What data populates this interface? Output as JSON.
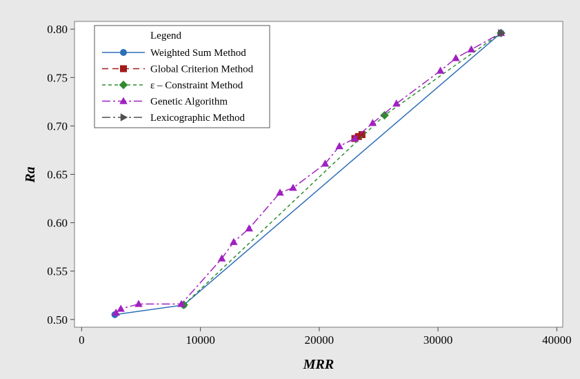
{
  "chart_data": {
    "type": "line",
    "title": "",
    "xlabel": "MRR",
    "ylabel": "Ra",
    "xlim": [
      -600,
      40500
    ],
    "ylim": [
      0.492,
      0.808
    ],
    "x_ticks": [
      0,
      10000,
      20000,
      30000,
      40000
    ],
    "x_tick_labels": [
      "0",
      "10000",
      "20000",
      "30000",
      "40000"
    ],
    "y_ticks": [
      0.5,
      0.55,
      0.6,
      0.65,
      0.7,
      0.75,
      0.8
    ],
    "y_tick_labels": [
      "0.50",
      "0.55",
      "0.60",
      "0.65",
      "0.70",
      "0.75",
      "0.80"
    ],
    "grid": false,
    "legend": {
      "title": "Legend",
      "position": "top-left"
    },
    "series": [
      {
        "name": "Weighted Sum Method",
        "color": "#2e6fb9",
        "marker": "circle",
        "dash": "",
        "points": [
          [
            2800,
            0.505
          ],
          [
            8600,
            0.515
          ],
          [
            35300,
            0.796
          ]
        ]
      },
      {
        "name": "Global Criterion Method",
        "color": "#a31a1a",
        "marker": "square",
        "dash": "9,6",
        "points": [
          [
            23000,
            0.687
          ],
          [
            23300,
            0.689
          ],
          [
            23600,
            0.691
          ]
        ]
      },
      {
        "name": "ε – Constraint Method",
        "color": "#2e8b2e",
        "marker": "diamond",
        "dash": "5,4",
        "points": [
          [
            8600,
            0.515
          ],
          [
            25500,
            0.711
          ],
          [
            35300,
            0.796
          ]
        ]
      },
      {
        "name": "Genetic Algorithm",
        "color": "#a020c0",
        "marker": "triangle",
        "dash": "12,4,3,4",
        "points": [
          [
            2900,
            0.507
          ],
          [
            3300,
            0.511
          ],
          [
            4800,
            0.516
          ],
          [
            8400,
            0.516
          ],
          [
            11800,
            0.563
          ],
          [
            12800,
            0.58
          ],
          [
            14100,
            0.594
          ],
          [
            16700,
            0.631
          ],
          [
            17800,
            0.636
          ],
          [
            20500,
            0.661
          ],
          [
            21700,
            0.679
          ],
          [
            23000,
            0.687
          ],
          [
            24500,
            0.703
          ],
          [
            26500,
            0.723
          ],
          [
            30200,
            0.757
          ],
          [
            31500,
            0.77
          ],
          [
            32800,
            0.779
          ],
          [
            35300,
            0.796
          ]
        ]
      },
      {
        "name": "Lexicographic Method",
        "color": "#505050",
        "marker": "triangle-right",
        "dash": "12,4,3,4",
        "points": [
          [
            35300,
            0.796
          ]
        ]
      }
    ]
  }
}
